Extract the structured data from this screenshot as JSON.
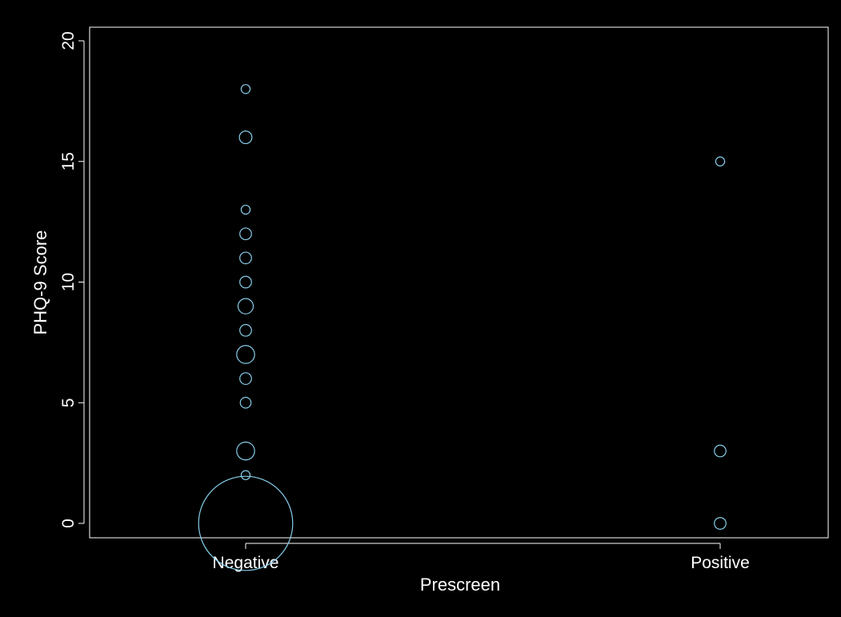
{
  "chart_data": {
    "type": "scatter",
    "title": "",
    "xlabel": "Prescreen",
    "ylabel": "PHQ-9 Score",
    "categories": [
      "Negative",
      "Positive"
    ],
    "ylim": [
      0,
      20
    ],
    "yticks": [
      "0",
      "5",
      "10",
      "15",
      "20"
    ],
    "grid": false,
    "legend": "none",
    "marker_color": "#87ceeb",
    "background_color": "#000000",
    "axis_color": "#ffffff",
    "note": "Bubble scatter: circle size grows with the number of observations at each point.",
    "points": [
      {
        "category": "Negative",
        "y": 0,
        "size": 10.5
      },
      {
        "category": "Negative",
        "y": 2,
        "size": 1
      },
      {
        "category": "Negative",
        "y": 3,
        "size": 2
      },
      {
        "category": "Negative",
        "y": 5,
        "size": 1.2
      },
      {
        "category": "Negative",
        "y": 6,
        "size": 1.3
      },
      {
        "category": "Negative",
        "y": 7,
        "size": 2
      },
      {
        "category": "Negative",
        "y": 8,
        "size": 1.3
      },
      {
        "category": "Negative",
        "y": 9,
        "size": 1.7
      },
      {
        "category": "Negative",
        "y": 10,
        "size": 1.3
      },
      {
        "category": "Negative",
        "y": 11,
        "size": 1.3
      },
      {
        "category": "Negative",
        "y": 12,
        "size": 1.3
      },
      {
        "category": "Negative",
        "y": 13,
        "size": 1
      },
      {
        "category": "Negative",
        "y": 16,
        "size": 1.4
      },
      {
        "category": "Negative",
        "y": 18,
        "size": 1
      },
      {
        "category": "Positive",
        "y": 0,
        "size": 1.3
      },
      {
        "category": "Positive",
        "y": 3,
        "size": 1.3
      },
      {
        "category": "Positive",
        "y": 15,
        "size": 1
      }
    ]
  }
}
